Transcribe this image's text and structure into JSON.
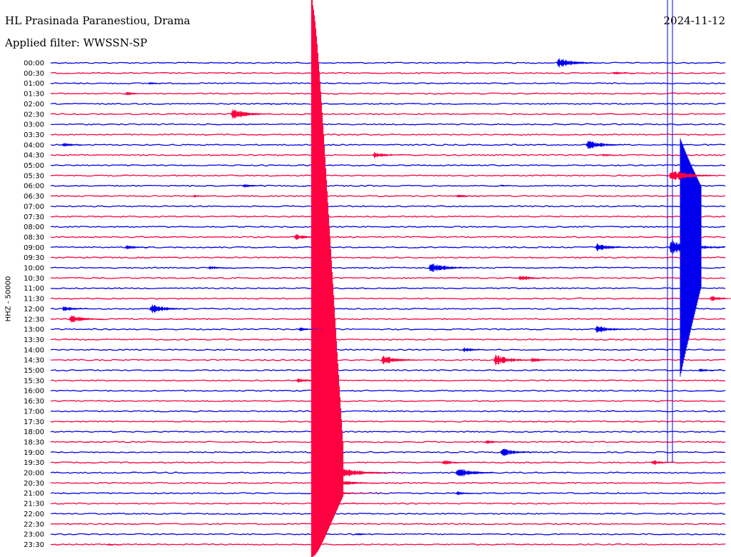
{
  "header": {
    "station": "HL Prasinada Paranestiou, Drama",
    "filter": "Applied filter: WWSSN-SP",
    "date": "2024-11-12"
  },
  "chart_data": {
    "type": "line",
    "title": "HL Prasinada Paranestiou, Drama",
    "ylabel": "HHZ - 50000",
    "colors": [
      "#0000ee",
      "#ff0040"
    ],
    "tick_labels": [
      "00:00",
      "00:30",
      "01:00",
      "01:30",
      "02:00",
      "02:30",
      "03:00",
      "03:30",
      "04:00",
      "04:30",
      "05:00",
      "05:30",
      "06:00",
      "06:30",
      "07:00",
      "07:30",
      "08:00",
      "08:30",
      "09:00",
      "09:30",
      "10:00",
      "10:30",
      "11:00",
      "11:30",
      "12:00",
      "12:30",
      "13:00",
      "13:30",
      "14:00",
      "14:30",
      "15:00",
      "15:30",
      "16:00",
      "16:30",
      "17:00",
      "17:30",
      "18:00",
      "18:30",
      "19:00",
      "19:30",
      "20:00",
      "20:30",
      "21:00",
      "21:30",
      "22:00",
      "22:30",
      "23:00",
      "23:30"
    ],
    "events": [
      {
        "line": 0,
        "minute": 22.5,
        "amp": 1.0
      },
      {
        "line": 1,
        "minute": 25.0,
        "amp": 0.4
      },
      {
        "line": 2,
        "minute": 4.3,
        "amp": 0.3
      },
      {
        "line": 3,
        "minute": 3.3,
        "amp": 0.4
      },
      {
        "line": 4,
        "minute": 9.5,
        "amp": 0.15
      },
      {
        "line": 5,
        "minute": 8.0,
        "amp": 1.0
      },
      {
        "line": 8,
        "minute": 0.5,
        "amp": 0.5
      },
      {
        "line": 8,
        "minute": 23.8,
        "amp": 0.9
      },
      {
        "line": 9,
        "minute": 14.3,
        "amp": 0.6
      },
      {
        "line": 9,
        "minute": 24.5,
        "amp": 0.3
      },
      {
        "line": 11,
        "minute": 27.5,
        "amp": 1.2
      },
      {
        "line": 12,
        "minute": 8.5,
        "amp": 0.4
      },
      {
        "line": 12,
        "minute": 20.0,
        "amp": 0.2
      },
      {
        "line": 13,
        "minute": 6.3,
        "amp": 0.3
      },
      {
        "line": 13,
        "minute": 18.0,
        "amp": 0.4
      },
      {
        "line": 17,
        "minute": 10.8,
        "amp": 0.6
      },
      {
        "line": 18,
        "minute": 3.3,
        "amp": 0.5
      },
      {
        "line": 18,
        "minute": 24.2,
        "amp": 0.8
      },
      {
        "line": 18,
        "minute": 27.5,
        "amp": 1.5
      },
      {
        "line": 20,
        "minute": 7.0,
        "amp": 0.4
      },
      {
        "line": 20,
        "minute": 16.8,
        "amp": 1.0
      },
      {
        "line": 21,
        "minute": 20.8,
        "amp": 0.6
      },
      {
        "line": 23,
        "minute": 29.3,
        "amp": 0.6
      },
      {
        "line": 24,
        "minute": 0.5,
        "amp": 0.6
      },
      {
        "line": 24,
        "minute": 4.4,
        "amp": 0.9
      },
      {
        "line": 25,
        "minute": 0.8,
        "amp": 0.8
      },
      {
        "line": 26,
        "minute": 11.0,
        "amp": 0.4
      },
      {
        "line": 26,
        "minute": 24.2,
        "amp": 0.8
      },
      {
        "line": 28,
        "minute": 18.3,
        "amp": 0.5
      },
      {
        "line": 29,
        "minute": 14.7,
        "amp": 0.9
      },
      {
        "line": 29,
        "minute": 19.7,
        "amp": 1.0
      },
      {
        "line": 29,
        "minute": 21.3,
        "amp": 0.5
      },
      {
        "line": 30,
        "minute": 28.8,
        "amp": 0.4
      },
      {
        "line": 31,
        "minute": 10.9,
        "amp": 0.5
      },
      {
        "line": 37,
        "minute": 19.3,
        "amp": 0.4
      },
      {
        "line": 38,
        "minute": 20.0,
        "amp": 0.8
      },
      {
        "line": 39,
        "minute": 17.4,
        "amp": 0.5
      },
      {
        "line": 39,
        "minute": 26.7,
        "amp": 0.5
      },
      {
        "line": 40,
        "minute": 18.0,
        "amp": 1.0
      },
      {
        "line": 42,
        "minute": 18.0,
        "amp": 0.4
      },
      {
        "line": 46,
        "minute": 13.5,
        "amp": 0.3
      },
      {
        "line": 47,
        "minute": 2.5,
        "amp": 0.2
      }
    ],
    "large_quake": {
      "start_line": 0,
      "minute": 11.6,
      "decay_lines": 43
    },
    "grid": false
  }
}
